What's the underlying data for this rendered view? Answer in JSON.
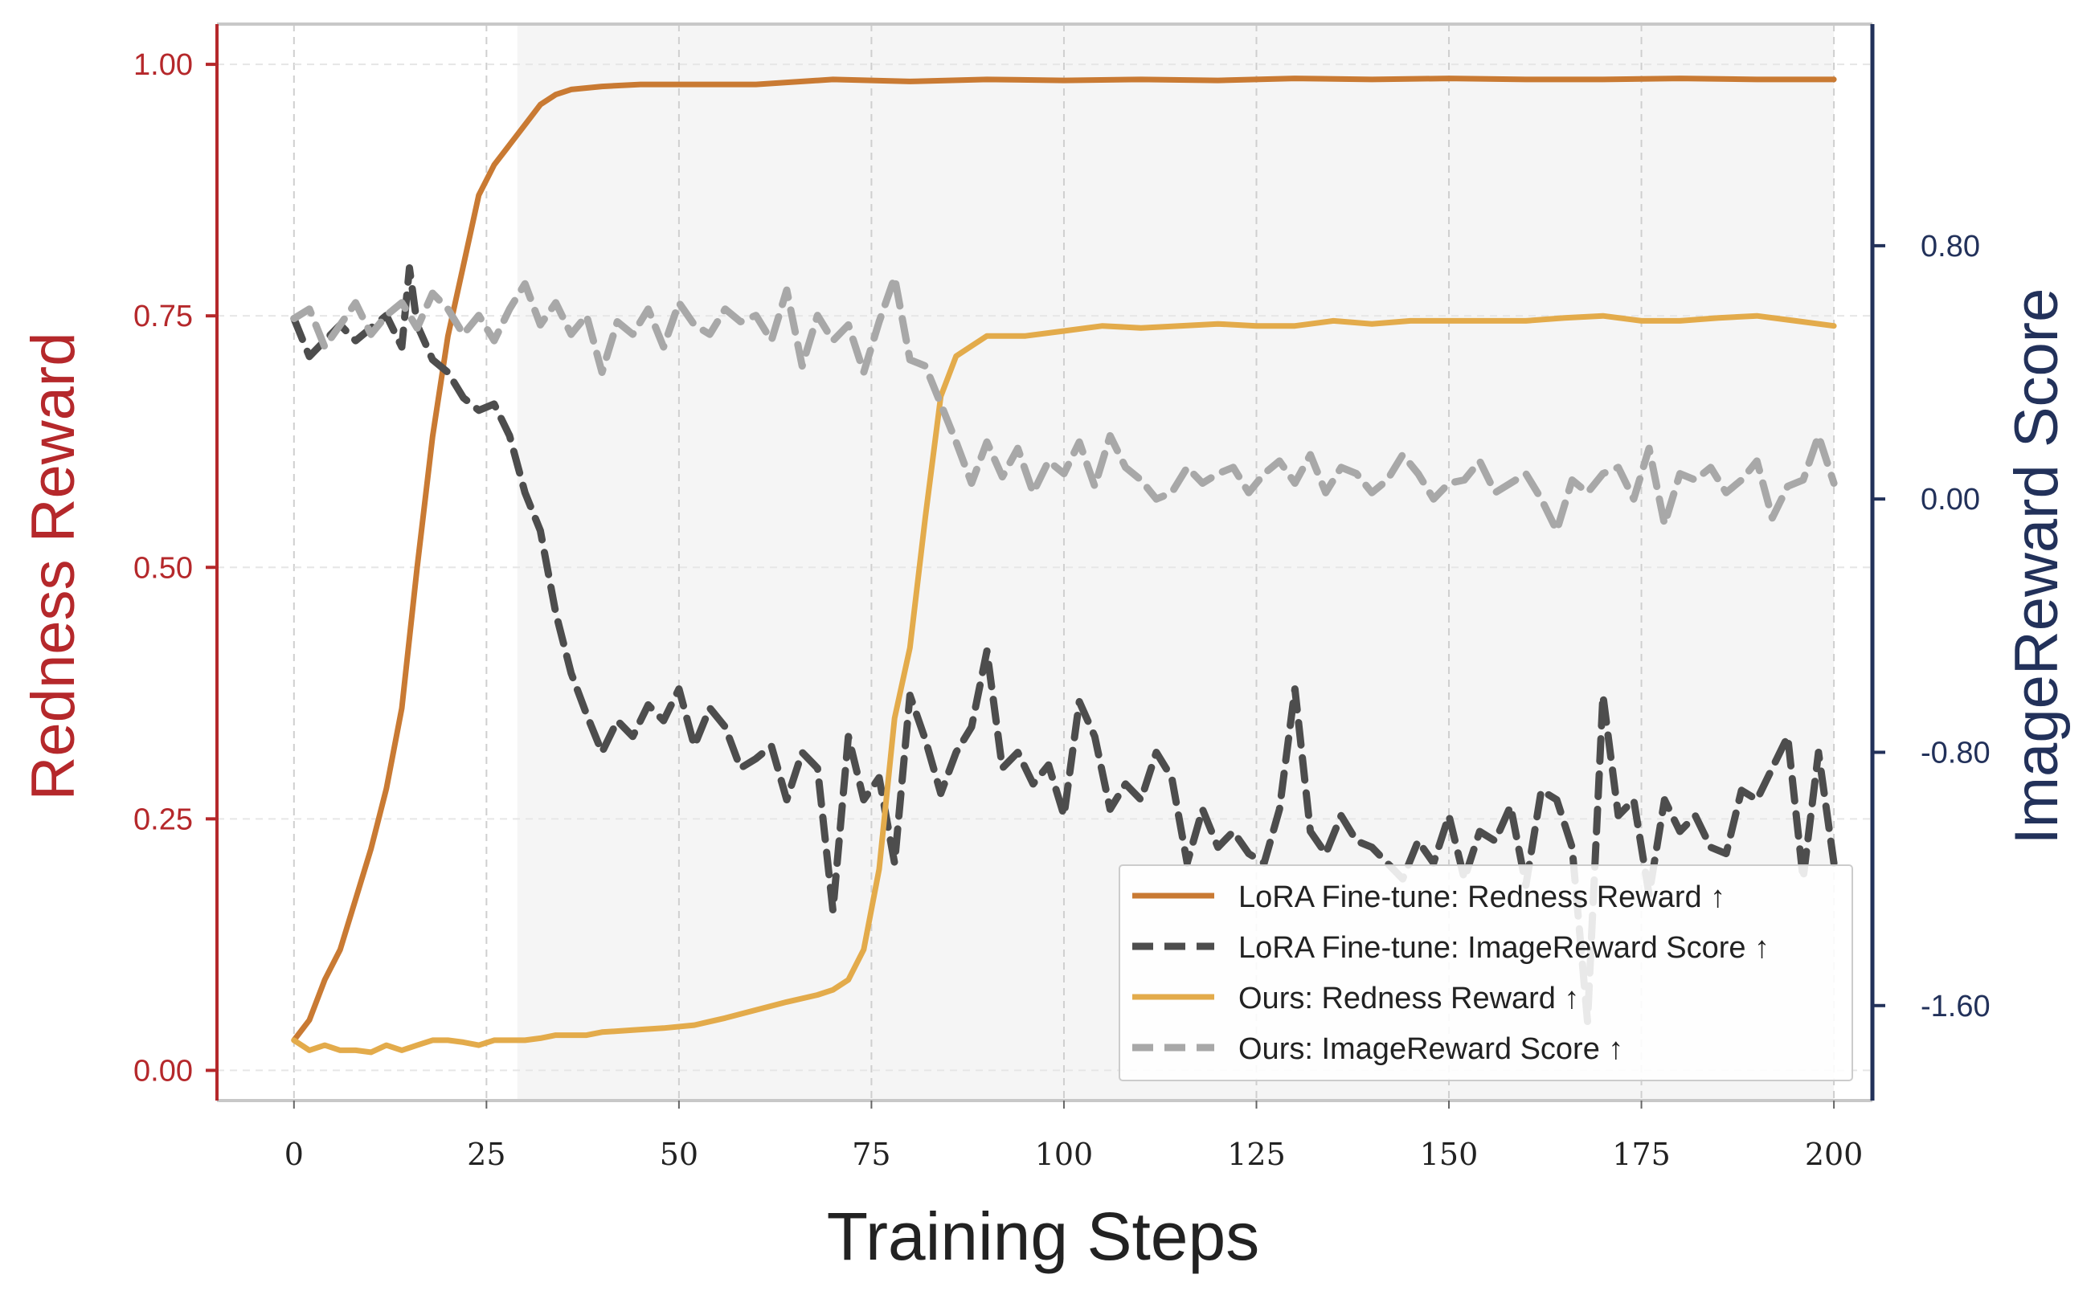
{
  "chart_data": {
    "type": "line",
    "xlabel": "Training Steps",
    "ylabel_left": "Redness Reward",
    "ylabel_right": "ImageReward Score",
    "xlim": [
      -10,
      205
    ],
    "ylim_left": [
      -0.03,
      1.04
    ],
    "ylim_right": [
      -1.9,
      1.5
    ],
    "x_ticks": [
      0,
      25,
      50,
      75,
      100,
      125,
      150,
      175,
      200
    ],
    "y_left_ticks": [
      0.0,
      0.25,
      0.5,
      0.75,
      1.0
    ],
    "y_left_tick_labels": [
      "0.00",
      "0.25",
      "0.50",
      "0.75",
      "1.00"
    ],
    "y_right_ticks": [
      -1.6,
      -0.8,
      0.0,
      0.8
    ],
    "y_right_tick_labels": [
      "-1.60",
      "-0.80",
      "0.00",
      "0.80"
    ],
    "grid": true,
    "shaded_region_x": [
      29,
      200
    ],
    "legend_position": "lower-right",
    "colors": {
      "left_axis": "#b5282b",
      "right_axis": "#22315a",
      "lora_redness": "#c97a33",
      "lora_imagereward": "#4d4d4d",
      "ours_redness": "#e3ab4b",
      "ours_imagereward": "#a8a8a8",
      "grid": "#dddddd",
      "shade": "#f5f5f5"
    },
    "series": [
      {
        "name": "LoRA Fine-tune: Redness Reward ↑",
        "axis": "left",
        "style": "solid",
        "x": [
          0,
          2,
          4,
          6,
          8,
          10,
          12,
          14,
          16,
          18,
          20,
          22,
          24,
          26,
          28,
          30,
          32,
          34,
          36,
          40,
          45,
          50,
          60,
          70,
          80,
          90,
          100,
          110,
          120,
          130,
          140,
          150,
          160,
          170,
          180,
          190,
          200
        ],
        "y": [
          0.03,
          0.05,
          0.09,
          0.12,
          0.17,
          0.22,
          0.28,
          0.36,
          0.5,
          0.63,
          0.73,
          0.8,
          0.87,
          0.9,
          0.92,
          0.94,
          0.96,
          0.97,
          0.975,
          0.978,
          0.98,
          0.98,
          0.98,
          0.985,
          0.983,
          0.985,
          0.984,
          0.985,
          0.984,
          0.986,
          0.985,
          0.986,
          0.985,
          0.985,
          0.986,
          0.985,
          0.985
        ]
      },
      {
        "name": "LoRA Fine-tune: ImageReward Score ↑",
        "axis": "right",
        "style": "dashed",
        "x": [
          0,
          2,
          4,
          6,
          8,
          10,
          12,
          14,
          15,
          16,
          18,
          20,
          22,
          24,
          26,
          28,
          30,
          32,
          34,
          36,
          38,
          40,
          42,
          44,
          46,
          48,
          50,
          52,
          54,
          56,
          58,
          60,
          62,
          64,
          66,
          68,
          70,
          72,
          74,
          76,
          78,
          80,
          82,
          84,
          86,
          88,
          90,
          92,
          94,
          96,
          98,
          100,
          102,
          104,
          106,
          108,
          110,
          112,
          114,
          116,
          118,
          120,
          122,
          124,
          126,
          128,
          130,
          132,
          134,
          136,
          138,
          140,
          142,
          144,
          146,
          148,
          150,
          152,
          154,
          156,
          158,
          160,
          162,
          164,
          166,
          168,
          170,
          172,
          174,
          176,
          178,
          180,
          182,
          184,
          186,
          188,
          190,
          192,
          194,
          196,
          198,
          200
        ],
        "y": [
          0.57,
          0.45,
          0.5,
          0.55,
          0.5,
          0.54,
          0.58,
          0.48,
          0.73,
          0.55,
          0.44,
          0.4,
          0.32,
          0.28,
          0.3,
          0.2,
          0.02,
          -0.1,
          -0.36,
          -0.55,
          -0.68,
          -0.8,
          -0.7,
          -0.75,
          -0.65,
          -0.7,
          -0.6,
          -0.78,
          -0.66,
          -0.72,
          -0.85,
          -0.82,
          -0.78,
          -0.95,
          -0.8,
          -0.85,
          -1.3,
          -0.75,
          -0.95,
          -0.88,
          -1.15,
          -0.62,
          -0.76,
          -0.93,
          -0.8,
          -0.72,
          -0.48,
          -0.85,
          -0.8,
          -0.9,
          -0.84,
          -1.0,
          -0.64,
          -0.75,
          -0.98,
          -0.9,
          -0.95,
          -0.8,
          -0.88,
          -1.15,
          -0.98,
          -1.1,
          -1.05,
          -1.12,
          -1.15,
          -0.98,
          -0.6,
          -1.05,
          -1.12,
          -1.0,
          -1.08,
          -1.1,
          -1.15,
          -1.2,
          -1.08,
          -1.15,
          -1.0,
          -1.2,
          -1.05,
          -1.08,
          -0.97,
          -1.22,
          -0.92,
          -0.95,
          -1.1,
          -1.65,
          -0.62,
          -1.0,
          -0.95,
          -1.25,
          -0.95,
          -1.05,
          -1.0,
          -1.1,
          -1.12,
          -0.92,
          -0.95,
          -0.85,
          -0.75,
          -1.2,
          -0.8,
          -1.15
        ]
      },
      {
        "name": "Ours: Redness Reward ↑",
        "axis": "left",
        "style": "solid",
        "x": [
          0,
          2,
          4,
          6,
          8,
          10,
          12,
          14,
          16,
          18,
          20,
          22,
          24,
          26,
          28,
          30,
          32,
          34,
          36,
          38,
          40,
          44,
          48,
          52,
          56,
          60,
          64,
          68,
          70,
          72,
          74,
          76,
          78,
          80,
          82,
          84,
          86,
          88,
          90,
          95,
          100,
          105,
          110,
          115,
          120,
          125,
          130,
          135,
          140,
          145,
          150,
          155,
          160,
          165,
          170,
          175,
          180,
          185,
          190,
          195,
          200
        ],
        "y": [
          0.03,
          0.02,
          0.025,
          0.02,
          0.02,
          0.018,
          0.025,
          0.02,
          0.025,
          0.03,
          0.03,
          0.028,
          0.025,
          0.03,
          0.03,
          0.03,
          0.032,
          0.035,
          0.035,
          0.035,
          0.038,
          0.04,
          0.042,
          0.045,
          0.052,
          0.06,
          0.068,
          0.075,
          0.08,
          0.09,
          0.12,
          0.2,
          0.35,
          0.42,
          0.55,
          0.67,
          0.71,
          0.72,
          0.73,
          0.73,
          0.735,
          0.74,
          0.738,
          0.74,
          0.742,
          0.74,
          0.74,
          0.745,
          0.742,
          0.745,
          0.745,
          0.745,
          0.745,
          0.748,
          0.75,
          0.745,
          0.745,
          0.748,
          0.75,
          0.745,
          0.74
        ]
      },
      {
        "name": "Ours: ImageReward Score ↑",
        "axis": "right",
        "style": "dashed",
        "x": [
          0,
          2,
          4,
          6,
          8,
          10,
          12,
          14,
          16,
          18,
          20,
          22,
          24,
          26,
          28,
          30,
          32,
          34,
          36,
          38,
          40,
          42,
          44,
          46,
          48,
          50,
          52,
          54,
          56,
          58,
          60,
          62,
          64,
          66,
          68,
          70,
          72,
          74,
          76,
          78,
          80,
          82,
          84,
          86,
          88,
          90,
          92,
          94,
          96,
          98,
          100,
          102,
          104,
          106,
          108,
          110,
          112,
          114,
          116,
          118,
          120,
          122,
          124,
          126,
          128,
          130,
          132,
          134,
          136,
          138,
          140,
          142,
          144,
          146,
          148,
          150,
          152,
          154,
          156,
          158,
          160,
          162,
          164,
          166,
          168,
          170,
          172,
          174,
          176,
          178,
          180,
          182,
          184,
          186,
          188,
          190,
          192,
          194,
          196,
          198,
          200
        ],
        "y": [
          0.57,
          0.6,
          0.48,
          0.55,
          0.62,
          0.52,
          0.58,
          0.62,
          0.54,
          0.65,
          0.6,
          0.52,
          0.58,
          0.5,
          0.6,
          0.68,
          0.55,
          0.62,
          0.52,
          0.58,
          0.4,
          0.56,
          0.52,
          0.6,
          0.48,
          0.62,
          0.55,
          0.52,
          0.6,
          0.56,
          0.58,
          0.5,
          0.66,
          0.42,
          0.58,
          0.5,
          0.55,
          0.4,
          0.56,
          0.7,
          0.44,
          0.42,
          0.3,
          0.18,
          0.05,
          0.18,
          0.07,
          0.16,
          0.02,
          0.12,
          0.08,
          0.18,
          0.04,
          0.2,
          0.1,
          0.06,
          0.0,
          0.02,
          0.1,
          0.05,
          0.08,
          0.1,
          0.02,
          0.08,
          0.12,
          0.05,
          0.14,
          0.02,
          0.1,
          0.08,
          0.02,
          0.06,
          0.14,
          0.08,
          0.0,
          0.05,
          0.06,
          0.12,
          0.02,
          0.05,
          0.08,
          0.0,
          -0.1,
          0.06,
          0.02,
          0.08,
          0.1,
          0.0,
          0.16,
          -0.08,
          0.08,
          0.06,
          0.1,
          0.02,
          0.06,
          0.12,
          -0.06,
          0.04,
          0.06,
          0.2,
          0.05
        ]
      }
    ]
  }
}
